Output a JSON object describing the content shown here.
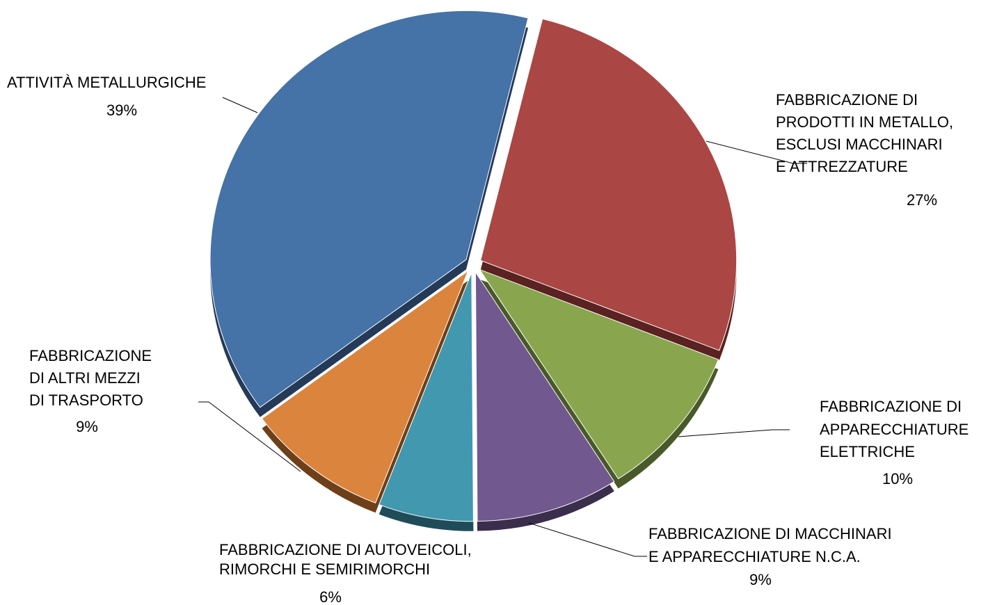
{
  "chart_data": {
    "type": "pie",
    "categories": [
      [
        "FABBRICAZIONE DI",
        "PRODOTTI IN METALLO,",
        "ESCLUSI   MACCHINARI",
        "E ATTREZZATURE"
      ],
      [
        "FABBRICAZIONE DI",
        "APPARECCHIATURE",
        "ELETTRICHE"
      ],
      [
        "FABBRICAZIONE DI MACCHINARI",
        "E APPARECCHIATURE N.C.A."
      ],
      [
        "FABBRICAZIONE DI AUTOVEICOLI,",
        "RIMORCHI E SEMIRIMORCHI"
      ],
      [
        "FABBRICAZIONE",
        "DI ALTRI MEZZI",
        "DI TRASPORTO"
      ],
      [
        "ATTIVITÀ METALLURGICHE"
      ]
    ],
    "values": [
      27,
      10,
      9,
      6,
      9,
      39
    ],
    "value_labels": [
      "27%",
      "10%",
      "9%",
      "6%",
      "9%",
      "39%"
    ],
    "colors": [
      "#aa4643",
      "#89a54e",
      "#71588f",
      "#4198af",
      "#db843d",
      "#4572a7"
    ],
    "side_colors": [
      "#5a2221",
      "#48592a",
      "#3b2d4c",
      "#1f4c58",
      "#6e4019",
      "#243a57"
    ]
  }
}
